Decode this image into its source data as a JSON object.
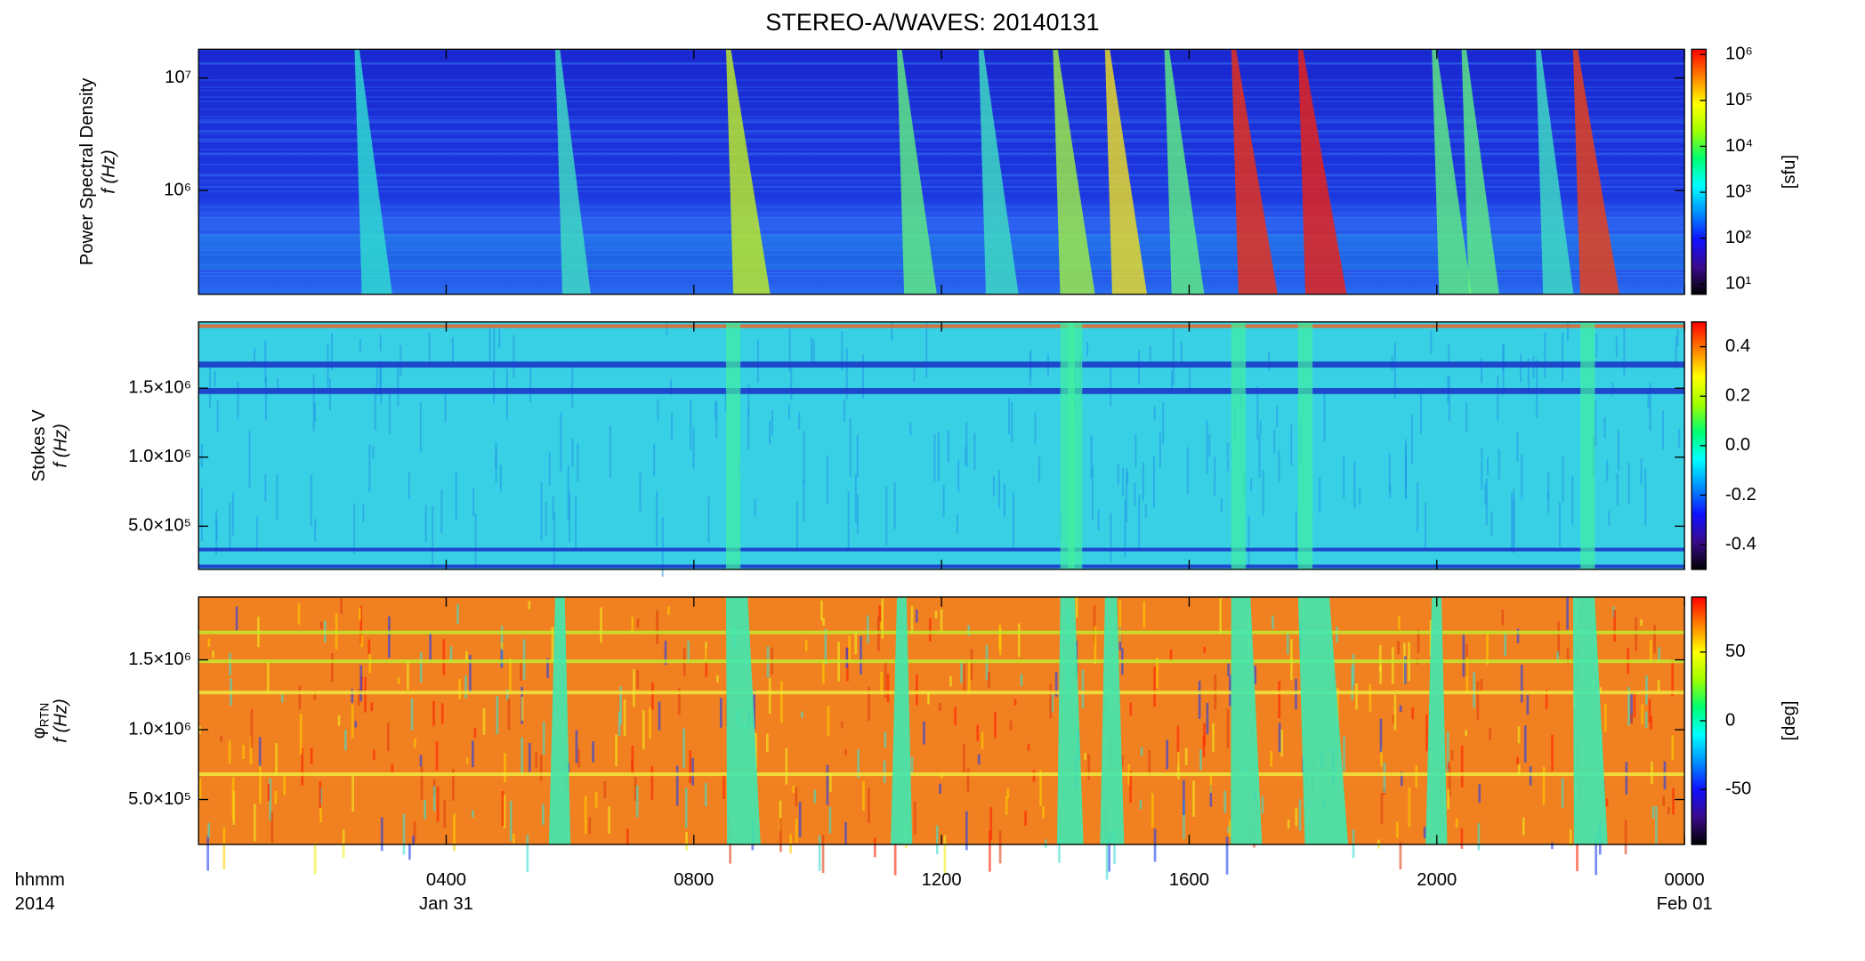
{
  "title": "STEREO-A/WAVES: 20140131",
  "x_axis": {
    "xlim": [
      0,
      24
    ],
    "xticks": [
      {
        "value": 4,
        "label": "0400"
      },
      {
        "value": 8,
        "label": "0800"
      },
      {
        "value": 12,
        "label": "1200"
      },
      {
        "value": 16,
        "label": "1600"
      },
      {
        "value": 20,
        "label": "2000"
      },
      {
        "value": 24,
        "label": "0000"
      }
    ],
    "date_labels": [
      {
        "value": 4,
        "label": "Jan 31"
      },
      {
        "value": 24,
        "label": "Feb 01"
      }
    ],
    "time_label": "hhmm",
    "year_label": "2014"
  },
  "chart_data": [
    {
      "type": "heatmap",
      "ylabel": "Power Spectral Density",
      "ylabel2": "f (Hz)",
      "ylog": true,
      "ylim": [
        120000,
        18000000
      ],
      "yticks": [
        {
          "value": 1000000,
          "label": "10⁶"
        },
        {
          "value": 10000000,
          "label": "10⁷"
        }
      ],
      "colorbar": {
        "log": true,
        "lim": [
          6,
          1300000
        ],
        "ticks": [
          {
            "value": 10,
            "label": "10¹"
          },
          {
            "value": 100,
            "label": "10²"
          },
          {
            "value": 1000,
            "label": "10³"
          },
          {
            "value": 10000,
            "label": "10⁴"
          },
          {
            "value": 100000,
            "label": "10⁵"
          },
          {
            "value": 1000000,
            "label": "10⁶"
          }
        ],
        "label": "[sfu]",
        "colors": [
          "#000000",
          "#3a0a8c",
          "#1010ff",
          "#0090ff",
          "#00ffff",
          "#00ff70",
          "#a0ff00",
          "#ffff00",
          "#ff8000",
          "#ff0000"
        ]
      }
    },
    {
      "type": "heatmap",
      "ylabel": "Stokes V",
      "ylabel2": "f (Hz)",
      "ylog": false,
      "ylim": [
        187000,
        1980000
      ],
      "yticks": [
        {
          "value": 500000,
          "label": "5.0×10⁵"
        },
        {
          "value": 1000000,
          "label": "1.0×10⁶"
        },
        {
          "value": 1500000,
          "label": "1.5×10⁶"
        }
      ],
      "colorbar": {
        "log": false,
        "lim": [
          -0.5,
          0.5
        ],
        "ticks": [
          -0.4,
          -0.2,
          {
            "value": 0,
            "label": "0.0"
          },
          0.2,
          0.4
        ],
        "colors": [
          "#000000",
          "#3a0a8c",
          "#1010ff",
          "#0090ff",
          "#00ffff",
          "#00ff70",
          "#a0ff00",
          "#ffff00",
          "#ff8000",
          "#ff0000"
        ]
      }
    },
    {
      "type": "heatmap",
      "ylabel": "φ",
      "ylabel_sub": "RTN",
      "ylabel2": "f (Hz)",
      "ylog": false,
      "ylim": [
        178000,
        1950000
      ],
      "yticks": [
        {
          "value": 500000,
          "label": "5.0×10⁵"
        },
        {
          "value": 1000000,
          "label": "1.0×10⁶"
        },
        {
          "value": 1500000,
          "label": "1.5×10⁶"
        }
      ],
      "colorbar": {
        "log": false,
        "lim": [
          -90,
          90
        ],
        "ticks": [
          -50,
          0,
          50
        ],
        "label": "[deg]",
        "colors": [
          "#000000",
          "#3a0a8c",
          "#1010ff",
          "#0090ff",
          "#00ffff",
          "#00ff70",
          "#a0ff00",
          "#ffff00",
          "#ff8000",
          "#ff0000"
        ]
      }
    }
  ]
}
